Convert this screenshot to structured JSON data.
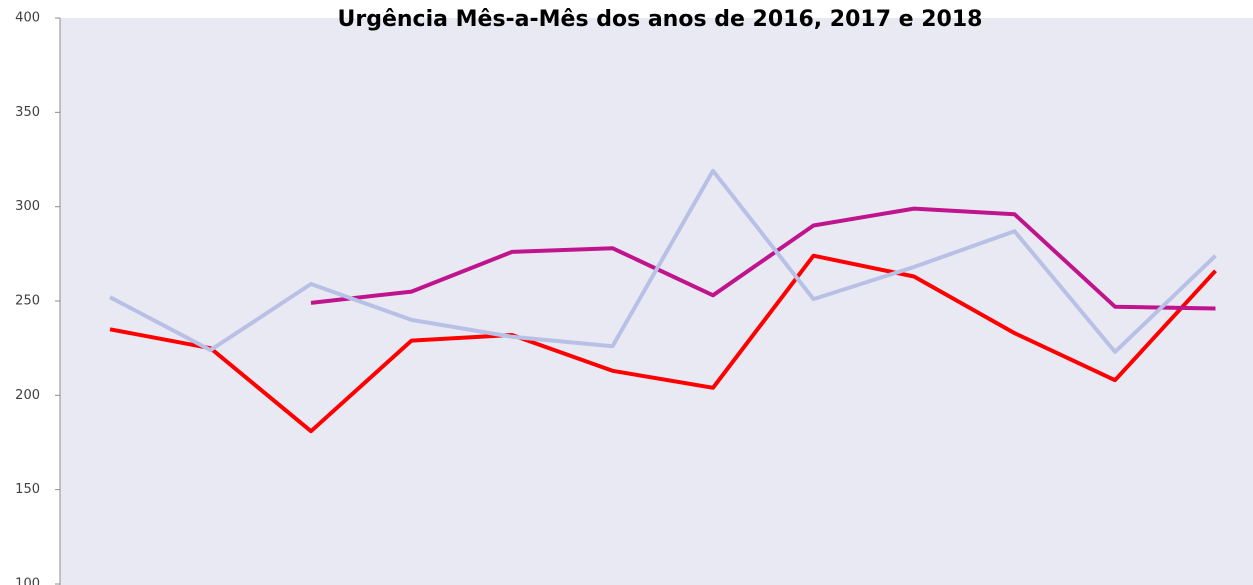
{
  "chart_data": {
    "type": "line",
    "title": "Urgência Mês-a-Mês dos anos de  2016, 2017 e 2018",
    "categories": [
      null,
      null,
      null,
      null,
      null,
      null,
      null,
      null,
      null,
      null,
      null,
      null
    ],
    "series": [
      {
        "color": "#ff0000",
        "values": [
          235,
          225,
          181,
          229,
          232,
          213,
          204,
          274,
          263,
          233,
          208,
          266
        ]
      },
      {
        "color": "#c0148c",
        "values": [
          null,
          null,
          249,
          255,
          276,
          278,
          253,
          290,
          299,
          296,
          247,
          246
        ]
      },
      {
        "color": "#b8c0e6",
        "values": [
          252,
          224,
          259,
          240,
          231,
          226,
          319,
          251,
          268,
          287,
          223,
          274
        ]
      }
    ],
    "ylim": [
      100,
      400
    ],
    "yticks": [
      100,
      150,
      200,
      250,
      300,
      350,
      400
    ],
    "grid": false
  }
}
